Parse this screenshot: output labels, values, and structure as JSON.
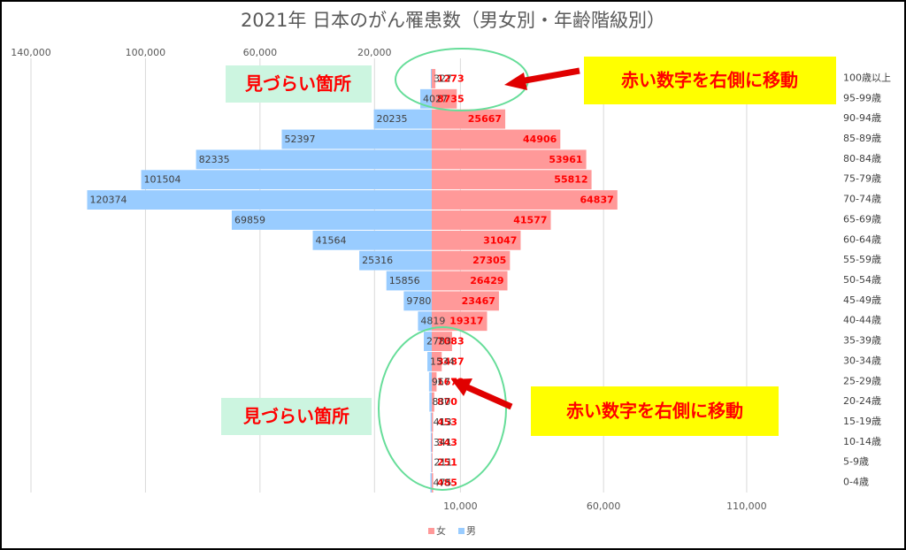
{
  "chart_data": {
    "type": "pyramid",
    "title": "2021年 日本のがん罹患数（男女別・年齢階級別）",
    "categories": [
      "100歳以上",
      "95-99歳",
      "90-94歳",
      "85-89歳",
      "80-84歳",
      "75-79歳",
      "70-74歳",
      "65-69歳",
      "60-64歳",
      "55-59歳",
      "50-54歳",
      "45-49歳",
      "40-44歳",
      "35-39歳",
      "30-34歳",
      "25-29歳",
      "20-24歳",
      "15-19歳",
      "10-14歳",
      "5-9歳",
      "0-4歳"
    ],
    "series": [
      {
        "name": "女",
        "color": "#ff9999",
        "label_color": "#ff0000",
        "direction": "right",
        "values": [
          1273,
          8735,
          25667,
          44906,
          53961,
          55812,
          64837,
          41577,
          31047,
          27305,
          26429,
          23467,
          19317,
          7083,
          3487,
          1673,
          870,
          453,
          343,
          251,
          485
        ]
      },
      {
        "name": "男",
        "color": "#99ccff",
        "label_color": "#404040",
        "direction": "left",
        "values": [
          327,
          4027,
          20235,
          52397,
          82335,
          101504,
          120374,
          69859,
          41564,
          25316,
          15856,
          9780,
          4819,
          2783,
          1534,
          967,
          830,
          413,
          341,
          211,
          475
        ]
      }
    ],
    "xlim": [
      -140000,
      140000
    ],
    "xticks": [
      {
        "value": 10000,
        "label": "10,000"
      },
      {
        "value": 60000,
        "label": "60,000"
      },
      {
        "value": 110000,
        "label": "110,000"
      }
    ],
    "x2ticks": [
      {
        "value": -140000,
        "label": "140,000"
      },
      {
        "value": -100000,
        "label": "100,000"
      },
      {
        "value": -60000,
        "label": "60,000"
      },
      {
        "value": -20000,
        "label": "20,000"
      }
    ],
    "grid": true,
    "legend": "bottom",
    "annotations": [
      {
        "text": "見づらい箇所"
      },
      {
        "text": "赤い数字を右側に移動"
      },
      {
        "text": "見づらい箇所"
      },
      {
        "text": "赤い数字を右側に移動"
      }
    ]
  }
}
